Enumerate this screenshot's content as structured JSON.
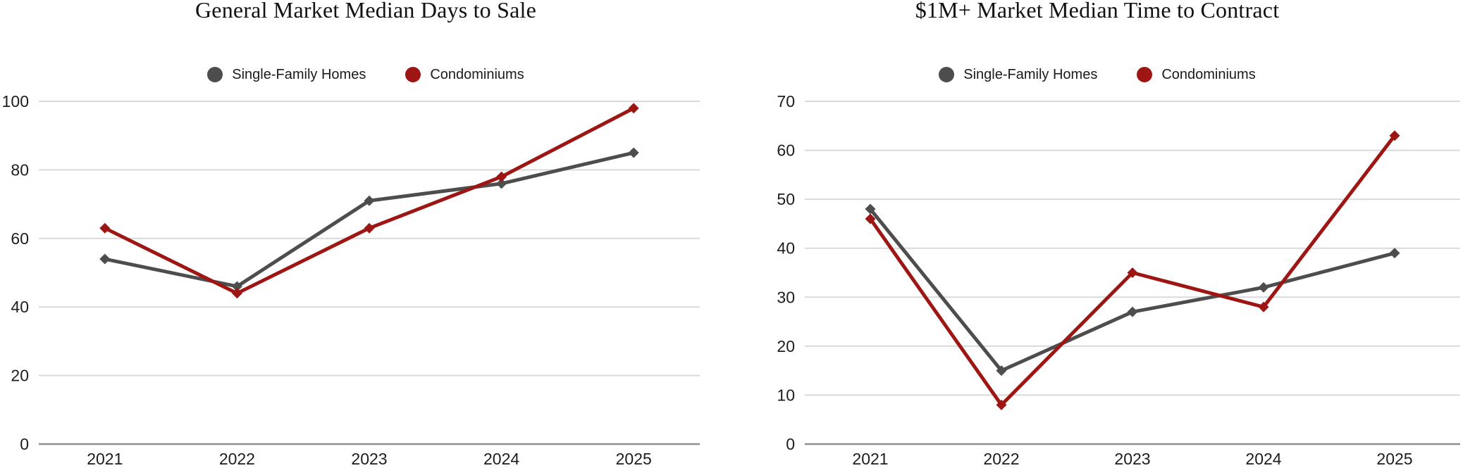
{
  "chart_data": [
    {
      "type": "line",
      "title": "General Market Median Days to Sale",
      "x": [
        "2021",
        "2022",
        "2023",
        "2024",
        "2025"
      ],
      "series": [
        {
          "name": "Single-Family Homes",
          "color": "#4d4d4d",
          "values": [
            54,
            46,
            71,
            76,
            85
          ]
        },
        {
          "name": "Condominiums",
          "color": "#9e1614",
          "values": [
            63,
            44,
            63,
            78,
            98
          ]
        }
      ],
      "xlabel": "",
      "ylabel": "",
      "ylim": [
        0,
        100
      ],
      "yticks": [
        0,
        20,
        40,
        60,
        80,
        100
      ],
      "grid": true,
      "grid_color": "#d9d9d9",
      "axis_color": "#8f8f8f",
      "tick_label_color": "#1d1d1d",
      "legend_position": "top",
      "marker": "diamond"
    },
    {
      "type": "line",
      "title": "$1M+ Market Median Time to Contract",
      "x": [
        "2021",
        "2022",
        "2023",
        "2024",
        "2025"
      ],
      "series": [
        {
          "name": "Single-Family Homes",
          "color": "#4d4d4d",
          "values": [
            48,
            15,
            27,
            32,
            39
          ]
        },
        {
          "name": "Condominiums",
          "color": "#9e1614",
          "values": [
            46,
            8,
            35,
            28,
            63
          ]
        }
      ],
      "xlabel": "",
      "ylabel": "",
      "ylim": [
        0,
        70
      ],
      "yticks": [
        0,
        10,
        20,
        30,
        40,
        50,
        60,
        70
      ],
      "grid": true,
      "grid_color": "#d9d9d9",
      "axis_color": "#8f8f8f",
      "tick_label_color": "#1d1d1d",
      "legend_position": "top",
      "marker": "diamond"
    }
  ]
}
